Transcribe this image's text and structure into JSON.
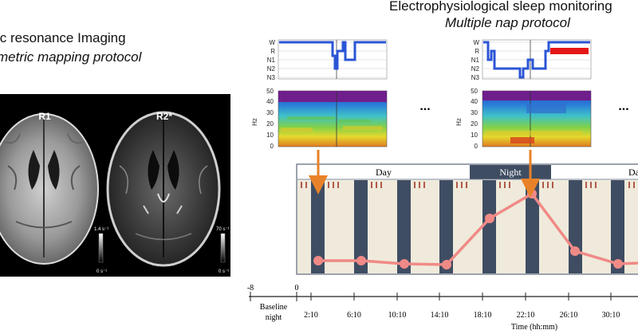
{
  "mri": {
    "title": "ic resonance Imaging",
    "subtitle": "metric mapping protocol",
    "maps": [
      {
        "label": "R1",
        "scale_max": "1.4 s⁻¹",
        "scale_min": "0 s⁻¹"
      },
      {
        "label": "R2*",
        "scale_max": "70 s⁻¹",
        "scale_min": "0 s⁻¹"
      }
    ]
  },
  "eeg": {
    "title": "Electrophysiological sleep monitoring",
    "subtitle": "Multiple nap protocol",
    "hypnogram_stages": [
      "W",
      "R",
      "N1",
      "N2",
      "N3"
    ],
    "spectrogram_axis": "Hz",
    "spectrogram_ticks": [
      "50",
      "40",
      "30",
      "20",
      "10",
      "0"
    ],
    "ellipsis": "..."
  },
  "protocol": {
    "day_label": "Day",
    "night_label": "Night",
    "day_label_right": "Da",
    "colors": {
      "nap": "#3f4d63",
      "wake": "#efeadb",
      "night": "#3f4d63",
      "curve": "#f08a86",
      "arrow": "#e8822a"
    }
  },
  "timeline": {
    "ticks_left": [
      "-8",
      "0"
    ],
    "baseline_label": [
      "Baseline",
      "night"
    ],
    "times": [
      "2:10",
      "6:10",
      "10:10",
      "14:10",
      "18:10",
      "22:10",
      "26:10",
      "30:10"
    ],
    "axis_label": "Time (hh:mm)"
  }
}
